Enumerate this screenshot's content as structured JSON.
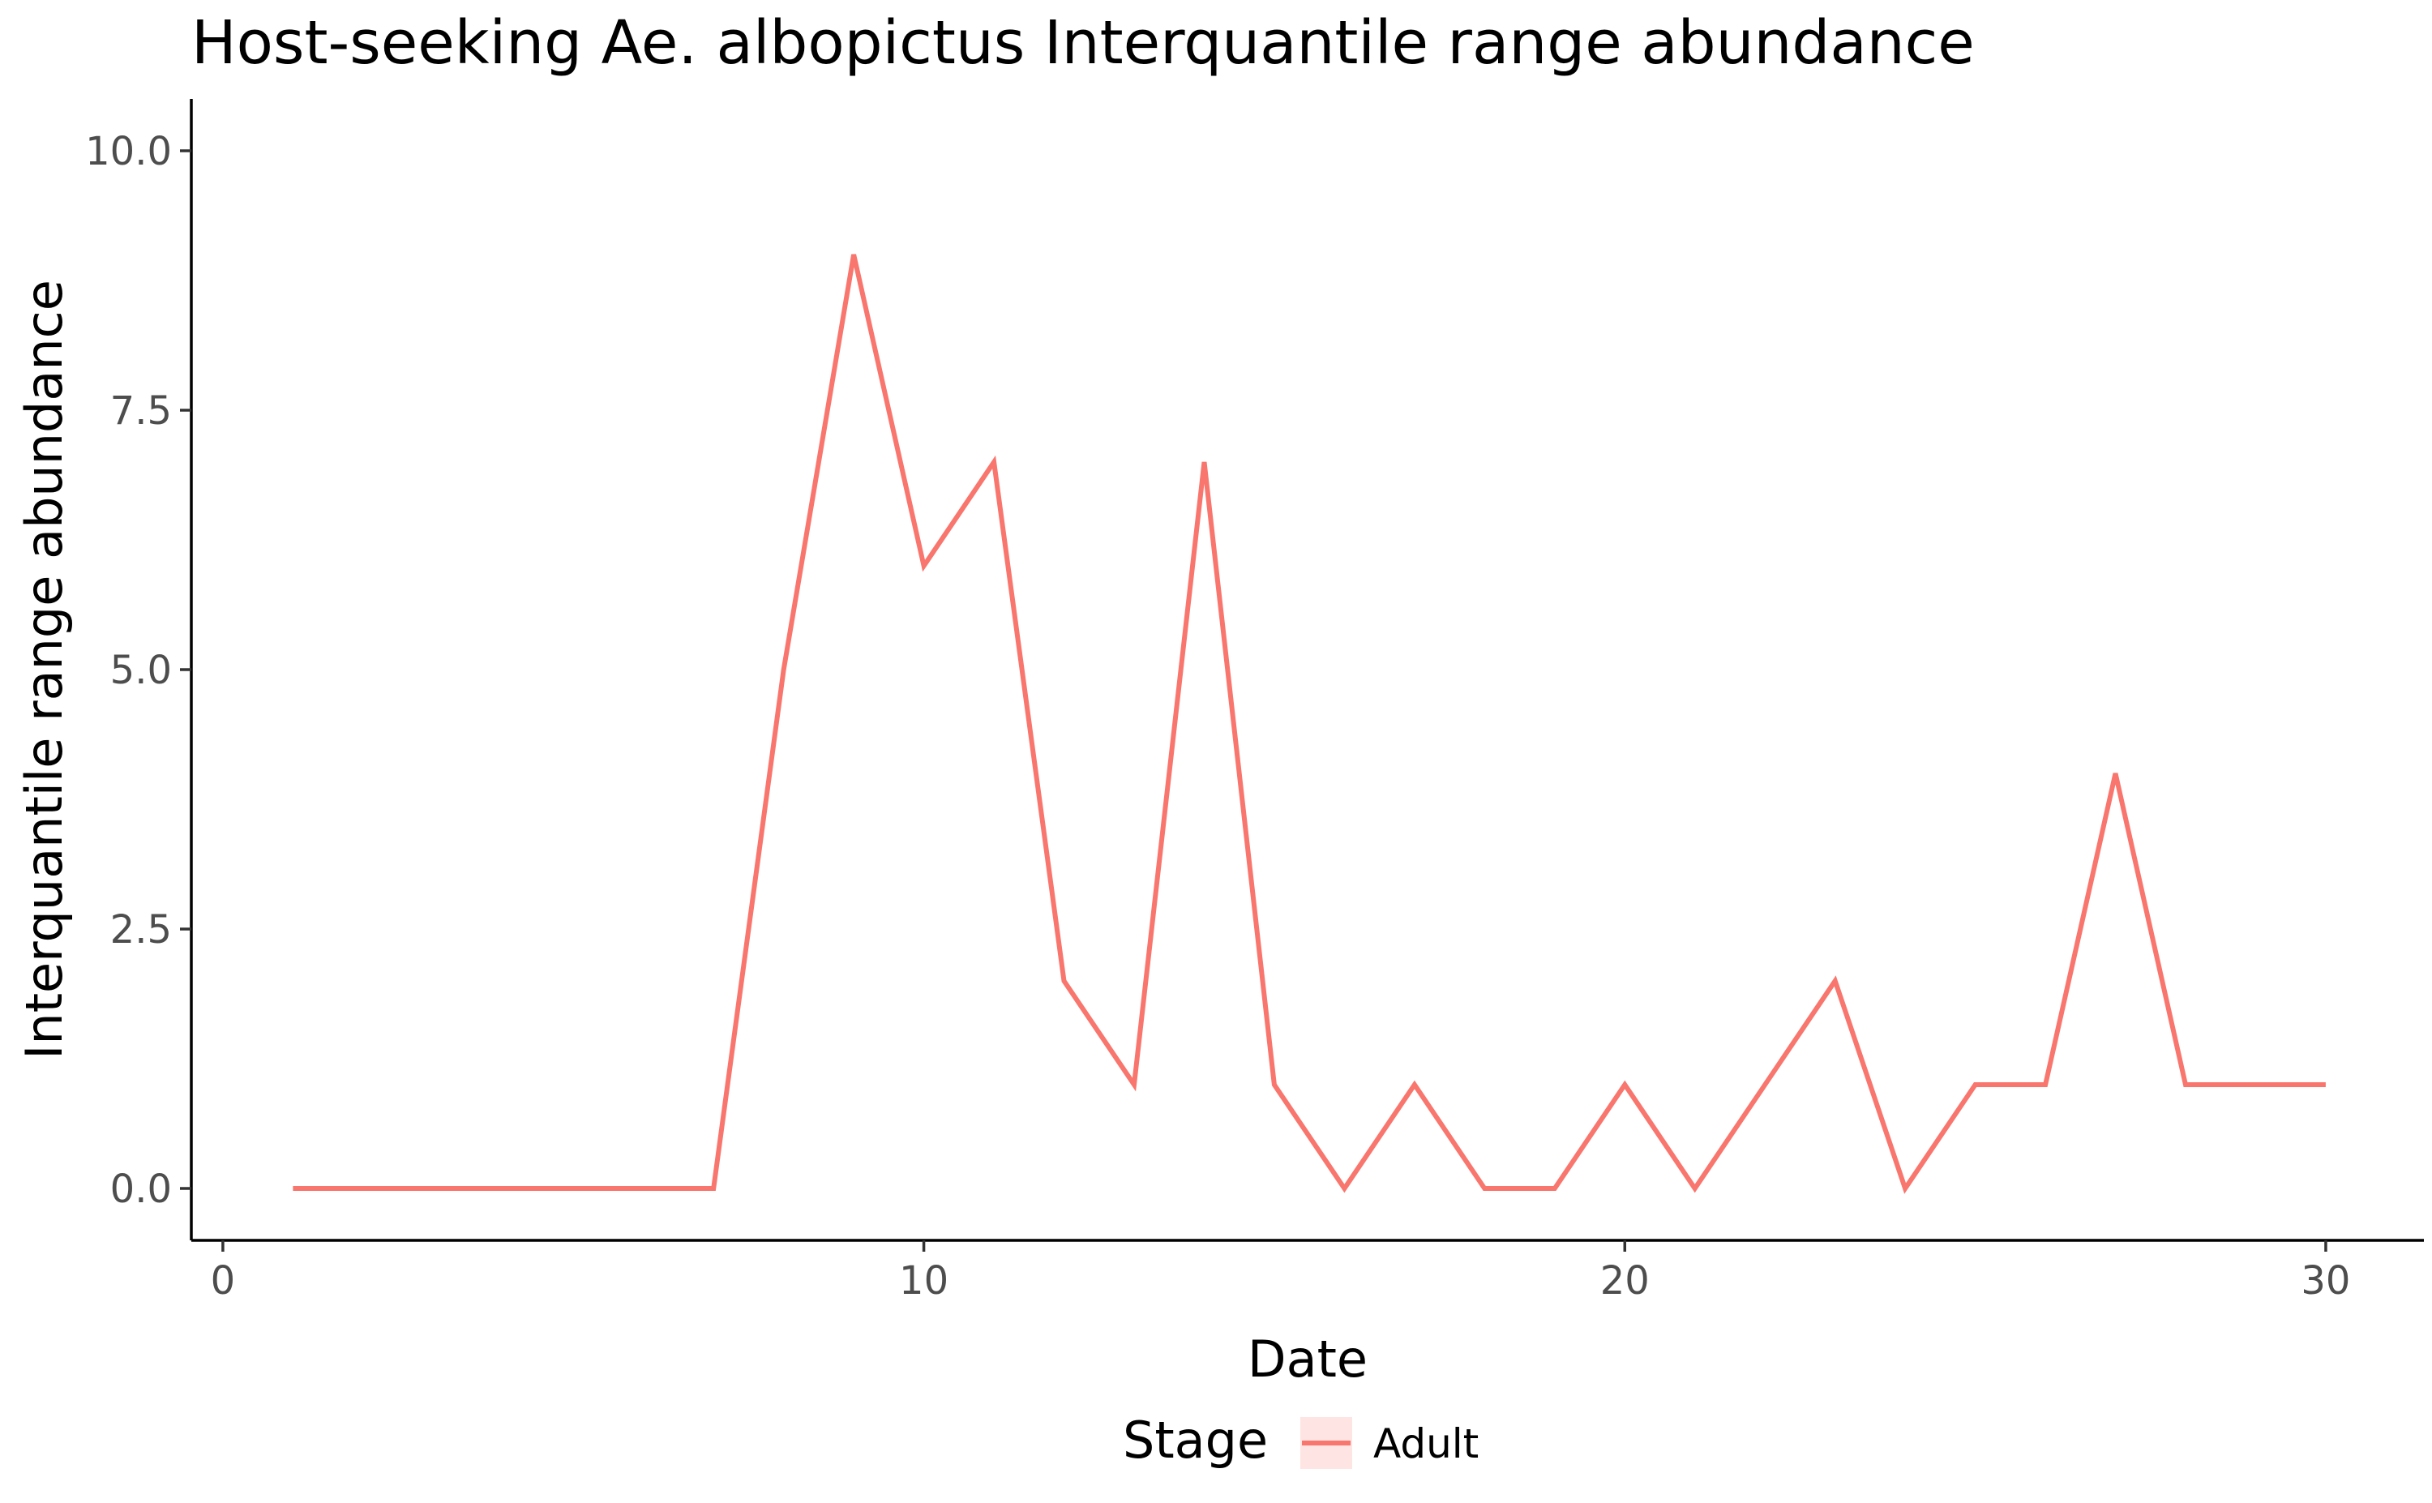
{
  "chart_data": {
    "type": "line",
    "title": "Host-seeking Ae. albopictus Interquantile range abundance",
    "xlabel": "Date",
    "ylabel": "Interquantile range abundance",
    "xlim": [
      -0.45,
      31.4
    ],
    "ylim": [
      -0.5,
      10.5
    ],
    "x_ticks": [
      0,
      10,
      20,
      30
    ],
    "x_tick_labels": [
      "0",
      "10",
      "20",
      "30"
    ],
    "y_ticks": [
      0,
      2.5,
      5,
      7.5,
      10
    ],
    "y_tick_labels": [
      "0.0",
      "2.5",
      "5.0",
      "7.5",
      "10.0"
    ],
    "grid": false,
    "legend": {
      "title": "Stage",
      "placement": "bottom"
    },
    "series": [
      {
        "name": "Adult",
        "color": "#F8766D",
        "x": [
          1,
          2,
          3,
          4,
          5,
          6,
          7,
          8,
          9,
          10,
          11,
          12,
          13,
          14,
          15,
          16,
          17,
          18,
          19,
          20,
          21,
          22,
          23,
          24,
          25,
          26,
          27,
          28,
          29,
          30
        ],
        "y": [
          0,
          0,
          0,
          0,
          0,
          0,
          0,
          5,
          9,
          6,
          7,
          2,
          1,
          7,
          1,
          0,
          1,
          0,
          0,
          1,
          0,
          1,
          2,
          0,
          1,
          1,
          4,
          1,
          1,
          1
        ]
      }
    ]
  }
}
